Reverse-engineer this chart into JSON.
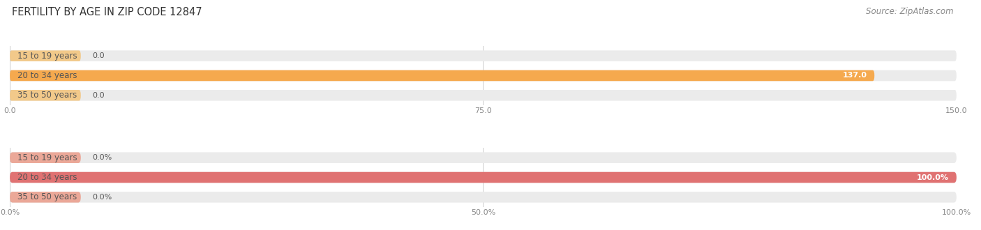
{
  "title": "FERTILITY BY AGE IN ZIP CODE 12847",
  "source": "Source: ZipAtlas.com",
  "top_chart": {
    "categories": [
      "15 to 19 years",
      "20 to 34 years",
      "35 to 50 years"
    ],
    "values": [
      0.0,
      137.0,
      0.0
    ],
    "xlim": [
      0,
      150.0
    ],
    "xticks": [
      0.0,
      75.0,
      150.0
    ],
    "xtick_labels": [
      "0.0",
      "75.0",
      "150.0"
    ],
    "bar_color": "#F5A94E",
    "bar_color_light": "#F2C98A",
    "track_color": "#EBEBEB",
    "value_label_color": "#ffffff"
  },
  "bottom_chart": {
    "categories": [
      "15 to 19 years",
      "20 to 34 years",
      "35 to 50 years"
    ],
    "values": [
      0.0,
      100.0,
      0.0
    ],
    "xlim": [
      0,
      100.0
    ],
    "xticks": [
      0.0,
      50.0,
      100.0
    ],
    "xtick_labels": [
      "0.0%",
      "50.0%",
      "100.0%"
    ],
    "bar_color": "#E07272",
    "bar_color_light": "#EBA898",
    "track_color": "#EBEBEB",
    "value_label_color": "#ffffff"
  },
  "bar_height": 0.55,
  "label_fontsize": 8.5,
  "value_fontsize": 8.0,
  "title_fontsize": 10.5,
  "source_fontsize": 8.5,
  "tick_fontsize": 8.0,
  "fig_bg": "#ffffff",
  "label_color": "#555555",
  "tick_color": "#888888",
  "grid_color": "#cccccc"
}
